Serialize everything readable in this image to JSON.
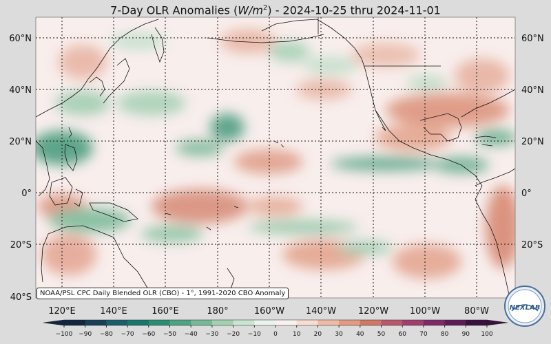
{
  "title": {
    "prefix": "7-Day OLR Anomalies (",
    "unit_base": "W/m",
    "unit_exp": "2",
    "suffix": ") - 2024-10-25 thru 2024-11-01"
  },
  "lat_labels": [
    "60°N",
    "40°N",
    "20°N",
    "0°",
    "20°S",
    "40°S"
  ],
  "lon_labels": [
    "120°E",
    "140°E",
    "160°E",
    "180°",
    "160°W",
    "140°W",
    "120°W",
    "100°W",
    "80°W"
  ],
  "colorbar": {
    "ticks": [
      "−100",
      "−90",
      "−80",
      "−70",
      "−60",
      "−50",
      "−40",
      "−30",
      "−20",
      "−10",
      "0",
      "10",
      "20",
      "30",
      "40",
      "50",
      "60",
      "70",
      "80",
      "90",
      "100"
    ],
    "colors": [
      "#11263f",
      "#183f58",
      "#1b5e6b",
      "#19786e",
      "#2a8e75",
      "#4ea383",
      "#76b996",
      "#a3d1b0",
      "#c9e4d0",
      "#eaf3ed",
      "#f8f2ee",
      "#f6ddd2",
      "#f0bba6",
      "#e29a82",
      "#cf7867",
      "#b8586a",
      "#9f3f6e",
      "#7f2a68",
      "#5c1c57",
      "#3a1040"
    ]
  },
  "credit": "NOAA/PSL CPC Daily Blended OLR (CBO) - 1°, 1991-2020 CBO Anomaly",
  "logo_text": "NEXLAB",
  "colors": {
    "green": "#3f9a7c",
    "red": "#d98a78",
    "neutral": "#f8eeec"
  }
}
